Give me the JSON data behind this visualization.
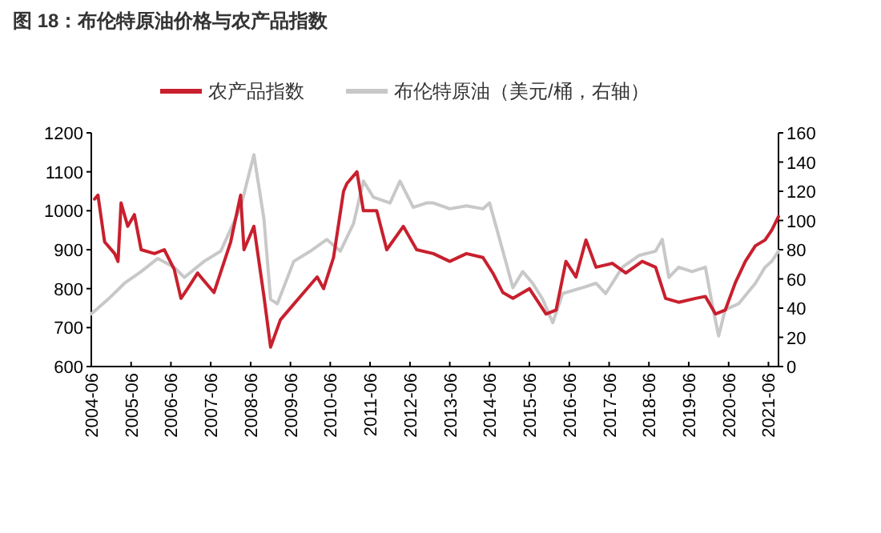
{
  "chart_data": {
    "type": "line",
    "title": "图 18：布伦特原油价格与农产品指数",
    "xlim": [
      "2004-06",
      "2021-09"
    ],
    "xticks": [
      "2004-06",
      "2005-06",
      "2006-06",
      "2007-06",
      "2008-06",
      "2009-06",
      "2010-06",
      "2011-06",
      "2012-06",
      "2013-06",
      "2014-06",
      "2015-06",
      "2016-06",
      "2017-06",
      "2018-06",
      "2019-06",
      "2020-06",
      "2021-06"
    ],
    "ylim": [
      600,
      1200
    ],
    "yticks": [
      600,
      700,
      800,
      900,
      1000,
      1100,
      1200
    ],
    "y2lim": [
      0,
      160
    ],
    "y2ticks": [
      0,
      20,
      40,
      60,
      80,
      100,
      120,
      140,
      160
    ],
    "legend": "top",
    "series": [
      {
        "name": "农产品指数",
        "color": "#c8202e",
        "x": [
          "2004-07",
          "2004-08",
          "2004-10",
          "2005-01",
          "2005-02",
          "2005-03",
          "2005-05",
          "2005-07",
          "2005-09",
          "2006-01",
          "2006-04",
          "2006-07",
          "2006-09",
          "2006-11",
          "2007-02",
          "2007-05",
          "2007-07",
          "2007-12",
          "2008-03",
          "2008-04",
          "2008-07",
          "2008-10",
          "2008-12",
          "2009-03",
          "2009-07",
          "2009-10",
          "2010-02",
          "2010-04",
          "2010-07",
          "2010-10",
          "2010-11",
          "2011-02",
          "2011-04",
          "2011-08",
          "2011-11",
          "2012-04",
          "2012-08",
          "2013-01",
          "2013-06",
          "2013-11",
          "2014-04",
          "2014-07",
          "2014-10",
          "2015-01",
          "2015-06",
          "2015-11",
          "2016-02",
          "2016-05",
          "2016-08",
          "2016-11",
          "2017-02",
          "2017-07",
          "2017-11",
          "2018-04",
          "2018-08",
          "2018-11",
          "2019-03",
          "2019-08",
          "2019-11",
          "2020-02",
          "2020-05",
          "2020-08",
          "2020-11",
          "2021-02",
          "2021-05",
          "2021-07",
          "2021-09"
        ],
        "values": [
          1030,
          1040,
          920,
          890,
          870,
          1020,
          960,
          990,
          900,
          890,
          900,
          850,
          775,
          800,
          840,
          810,
          790,
          920,
          1040,
          900,
          960,
          780,
          650,
          720,
          760,
          790,
          830,
          800,
          880,
          1050,
          1070,
          1100,
          1000,
          1000,
          900,
          960,
          900,
          890,
          870,
          890,
          880,
          840,
          790,
          775,
          800,
          735,
          745,
          870,
          830,
          925,
          855,
          865,
          840,
          870,
          855,
          775,
          765,
          775,
          780,
          735,
          745,
          815,
          870,
          910,
          925,
          950,
          985
        ]
      },
      {
        "name": "布伦特原油（美元/桶，右轴）",
        "color": "#c8c8c8",
        "axis": "y2",
        "x": [
          "2004-06",
          "2004-11",
          "2005-04",
          "2005-09",
          "2006-02",
          "2006-07",
          "2006-10",
          "2007-04",
          "2007-09",
          "2007-12",
          "2008-03",
          "2008-07",
          "2008-10",
          "2008-12",
          "2009-02",
          "2009-07",
          "2009-12",
          "2010-05",
          "2010-09",
          "2011-01",
          "2011-04",
          "2011-07",
          "2011-12",
          "2012-03",
          "2012-07",
          "2012-11",
          "2013-01",
          "2013-06",
          "2013-11",
          "2014-04",
          "2014-06",
          "2014-10",
          "2015-01",
          "2015-04",
          "2015-07",
          "2015-10",
          "2016-01",
          "2016-04",
          "2016-10",
          "2017-02",
          "2017-05",
          "2017-10",
          "2018-03",
          "2018-08",
          "2018-10",
          "2018-12",
          "2019-03",
          "2019-07",
          "2019-11",
          "2020-01",
          "2020-03",
          "2020-05",
          "2020-09",
          "2021-02",
          "2021-05",
          "2021-07",
          "2021-09"
        ],
        "values": [
          36,
          46,
          57,
          65,
          74,
          68,
          61,
          72,
          79,
          94,
          109,
          145,
          101,
          46,
          43,
          72,
          79,
          87,
          79,
          98,
          127,
          116,
          112,
          127,
          109,
          112,
          112,
          108,
          110,
          108,
          112,
          79,
          54,
          65,
          57,
          46,
          30,
          50,
          54,
          57,
          50,
          68,
          76,
          79,
          87,
          61,
          68,
          65,
          68,
          43,
          21,
          39,
          43,
          57,
          68,
          72,
          79
        ]
      }
    ]
  }
}
